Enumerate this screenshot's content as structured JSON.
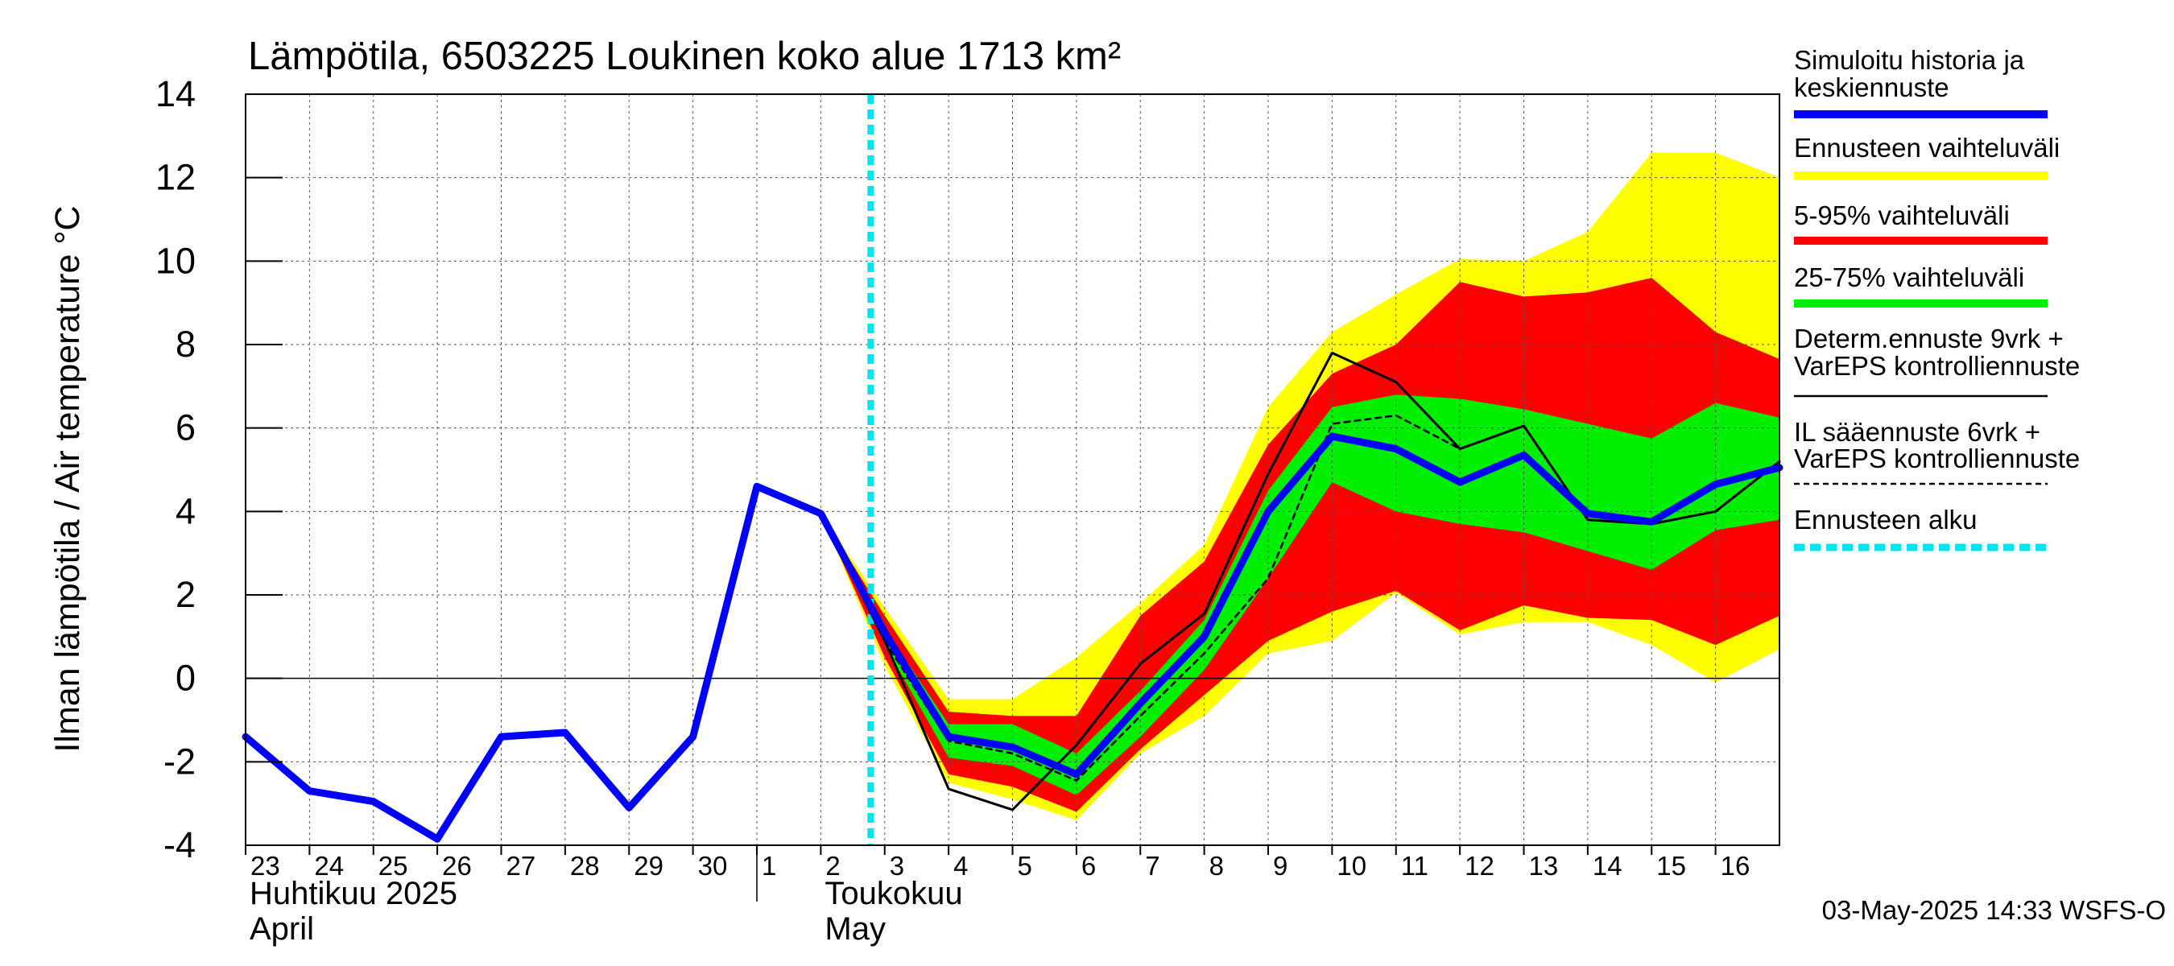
{
  "chart_data": {
    "type": "line",
    "title": "Lämpötila, 6503225 Loukinen koko alue 1713 km²",
    "ylabel": "Ilman lämpötila / Air temperature   °C",
    "ylim": [
      -4,
      14
    ],
    "yticks": [
      -4,
      -2,
      0,
      2,
      4,
      6,
      8,
      10,
      12,
      14
    ],
    "x_start": "2025-04-23",
    "x_end": "2025-05-17",
    "day_labels": [
      "23",
      "24",
      "25",
      "26",
      "27",
      "28",
      "29",
      "30",
      "1",
      "2",
      "3",
      "4",
      "5",
      "6",
      "7",
      "8",
      "9",
      "10",
      "11",
      "12",
      "13",
      "14",
      "15",
      "16"
    ],
    "month_labels": [
      {
        "line1": "Huhtikuu  2025",
        "line2": "April",
        "date": "2025-04-23"
      },
      {
        "line1": "Toukokuu",
        "line2": "May",
        "date": "2025-05-02"
      }
    ],
    "grid": true,
    "forecast_start": "2025-05-03",
    "timestamp": "03-May-2025 14:33 WSFS-O",
    "legend": {
      "placement": "right",
      "entries": [
        {
          "label_line1": "Simuloitu historia ja",
          "label_line2": "keskiennuste",
          "color": "#0000ff",
          "style": "thick"
        },
        {
          "label_line1": "Ennusteen vaihteluväli",
          "label_line2": "",
          "color": "#ffff00",
          "style": "thick"
        },
        {
          "label_line1": "5-95% vaihteluväli",
          "label_line2": "",
          "color": "#ff0000",
          "style": "thick"
        },
        {
          "label_line1": "25-75% vaihteluväli",
          "label_line2": "",
          "color": "#00ee00",
          "style": "thick"
        },
        {
          "label_line1": "Determ.ennuste 9vrk +",
          "label_line2": "VarEPS kontrolliennuste",
          "color": "#000000",
          "style": "thin"
        },
        {
          "label_line1": "IL sääennuste 6vrk  +",
          "label_line2": "  VarEPS kontrolliennuste",
          "color": "#000000",
          "style": "dashed"
        },
        {
          "label_line1": "Ennusteen alku",
          "label_line2": "",
          "color": "#00e5ee",
          "style": "dotted"
        }
      ]
    },
    "series": [
      {
        "key": "simulated",
        "color": "#0000ff",
        "points": [
          [
            "2025-04-23",
            -1.4
          ],
          [
            "2025-04-24",
            -2.7
          ],
          [
            "2025-04-25",
            -2.95
          ],
          [
            "2025-04-26",
            -3.85
          ],
          [
            "2025-04-27",
            -1.4
          ],
          [
            "2025-04-28",
            -1.3
          ],
          [
            "2025-04-29",
            -3.1
          ],
          [
            "2025-04-30",
            -1.4
          ],
          [
            "2025-05-01",
            4.6
          ],
          [
            "2025-05-02",
            3.95
          ],
          [
            "2025-05-03",
            1.1
          ],
          [
            "2025-05-04",
            -1.4
          ],
          [
            "2025-05-05",
            -1.65
          ],
          [
            "2025-05-06",
            -2.3
          ],
          [
            "2025-05-07",
            -0.6
          ],
          [
            "2025-05-08",
            1.0
          ],
          [
            "2025-05-09",
            4.0
          ],
          [
            "2025-05-10",
            5.8
          ],
          [
            "2025-05-11",
            5.5
          ],
          [
            "2025-05-12",
            4.7
          ],
          [
            "2025-05-13",
            5.35
          ],
          [
            "2025-05-14",
            3.95
          ],
          [
            "2025-05-15",
            3.75
          ],
          [
            "2025-05-16",
            4.65
          ],
          [
            "2025-05-17",
            5.05
          ]
        ]
      },
      {
        "key": "deterministic",
        "color": "#000000",
        "points": [
          [
            "2025-05-01",
            4.6
          ],
          [
            "2025-05-02",
            3.95
          ],
          [
            "2025-05-03",
            0.9
          ],
          [
            "2025-05-04",
            -2.65
          ],
          [
            "2025-05-05",
            -3.15
          ],
          [
            "2025-05-06",
            -1.6
          ],
          [
            "2025-05-07",
            0.35
          ],
          [
            "2025-05-08",
            1.55
          ],
          [
            "2025-05-09",
            4.9
          ],
          [
            "2025-05-10",
            7.8
          ],
          [
            "2025-05-11",
            7.1
          ],
          [
            "2025-05-12",
            5.5
          ],
          [
            "2025-05-13",
            6.05
          ],
          [
            "2025-05-14",
            3.8
          ],
          [
            "2025-05-15",
            3.7
          ],
          [
            "2025-05-16",
            4.0
          ],
          [
            "2025-05-17",
            5.2
          ]
        ]
      },
      {
        "key": "il_forecast",
        "color": "#000000",
        "points": [
          [
            "2025-05-03",
            0.9
          ],
          [
            "2025-05-04",
            -1.5
          ],
          [
            "2025-05-05",
            -1.8
          ],
          [
            "2025-05-06",
            -2.45
          ],
          [
            "2025-05-07",
            -0.9
          ],
          [
            "2025-05-08",
            0.6
          ],
          [
            "2025-05-09",
            2.4
          ],
          [
            "2025-05-10",
            6.1
          ],
          [
            "2025-05-11",
            6.3
          ],
          [
            "2025-05-12",
            5.5
          ]
        ]
      }
    ],
    "bands": [
      {
        "key": "range",
        "color": "#ffff00",
        "upper": [
          [
            "2025-05-02",
            3.95
          ],
          [
            "2025-05-03",
            1.7
          ],
          [
            "2025-05-04",
            -0.5
          ],
          [
            "2025-05-05",
            -0.5
          ],
          [
            "2025-05-06",
            0.5
          ],
          [
            "2025-05-07",
            1.8
          ],
          [
            "2025-05-08",
            3.2
          ],
          [
            "2025-05-09",
            6.5
          ],
          [
            "2025-05-10",
            8.3
          ],
          [
            "2025-05-11",
            9.2
          ],
          [
            "2025-05-12",
            10.05
          ],
          [
            "2025-05-13",
            10.0
          ],
          [
            "2025-05-14",
            10.7
          ],
          [
            "2025-05-15",
            12.6
          ],
          [
            "2025-05-16",
            12.6
          ],
          [
            "2025-05-17",
            12.0
          ]
        ],
        "lower": [
          [
            "2025-05-02",
            3.95
          ],
          [
            "2025-05-03",
            0.3
          ],
          [
            "2025-05-04",
            -2.5
          ],
          [
            "2025-05-05",
            -2.9
          ],
          [
            "2025-05-06",
            -3.4
          ],
          [
            "2025-05-07",
            -1.8
          ],
          [
            "2025-05-08",
            -0.9
          ],
          [
            "2025-05-09",
            0.6
          ],
          [
            "2025-05-10",
            0.9
          ],
          [
            "2025-05-11",
            2.05
          ],
          [
            "2025-05-12",
            1.05
          ],
          [
            "2025-05-13",
            1.35
          ],
          [
            "2025-05-14",
            1.35
          ],
          [
            "2025-05-15",
            0.8
          ],
          [
            "2025-05-16",
            -0.1
          ],
          [
            "2025-05-17",
            0.7
          ]
        ]
      },
      {
        "key": "p5_95",
        "color": "#ff0000",
        "upper": [
          [
            "2025-05-02",
            3.95
          ],
          [
            "2025-05-03",
            1.5
          ],
          [
            "2025-05-04",
            -0.8
          ],
          [
            "2025-05-05",
            -0.9
          ],
          [
            "2025-05-06",
            -0.9
          ],
          [
            "2025-05-07",
            1.5
          ],
          [
            "2025-05-08",
            2.8
          ],
          [
            "2025-05-09",
            5.6
          ],
          [
            "2025-05-10",
            7.3
          ],
          [
            "2025-05-11",
            8.0
          ],
          [
            "2025-05-12",
            9.5
          ],
          [
            "2025-05-13",
            9.15
          ],
          [
            "2025-05-14",
            9.25
          ],
          [
            "2025-05-15",
            9.6
          ],
          [
            "2025-05-16",
            8.3
          ],
          [
            "2025-05-17",
            7.65
          ]
        ],
        "lower": [
          [
            "2025-05-02",
            3.95
          ],
          [
            "2025-05-03",
            0.5
          ],
          [
            "2025-05-04",
            -2.3
          ],
          [
            "2025-05-05",
            -2.6
          ],
          [
            "2025-05-06",
            -3.2
          ],
          [
            "2025-05-07",
            -1.7
          ],
          [
            "2025-05-08",
            -0.4
          ],
          [
            "2025-05-09",
            0.9
          ],
          [
            "2025-05-10",
            1.6
          ],
          [
            "2025-05-11",
            2.1
          ],
          [
            "2025-05-12",
            1.15
          ],
          [
            "2025-05-13",
            1.75
          ],
          [
            "2025-05-14",
            1.45
          ],
          [
            "2025-05-15",
            1.4
          ],
          [
            "2025-05-16",
            0.8
          ],
          [
            "2025-05-17",
            1.5
          ]
        ]
      },
      {
        "key": "p25_75",
        "color": "#00ee00",
        "upper": [
          [
            "2025-05-03",
            1.2
          ],
          [
            "2025-05-04",
            -1.1
          ],
          [
            "2025-05-05",
            -1.1
          ],
          [
            "2025-05-06",
            -1.8
          ],
          [
            "2025-05-07",
            -0.3
          ],
          [
            "2025-05-08",
            1.4
          ],
          [
            "2025-05-09",
            4.5
          ],
          [
            "2025-05-10",
            6.5
          ],
          [
            "2025-05-11",
            6.8
          ],
          [
            "2025-05-12",
            6.7
          ],
          [
            "2025-05-13",
            6.45
          ],
          [
            "2025-05-14",
            6.1
          ],
          [
            "2025-05-15",
            5.75
          ],
          [
            "2025-05-16",
            6.6
          ],
          [
            "2025-05-17",
            6.25
          ]
        ],
        "lower": [
          [
            "2025-05-03",
            0.8
          ],
          [
            "2025-05-04",
            -1.9
          ],
          [
            "2025-05-05",
            -2.1
          ],
          [
            "2025-05-06",
            -2.8
          ],
          [
            "2025-05-07",
            -1.4
          ],
          [
            "2025-05-08",
            0.2
          ],
          [
            "2025-05-09",
            2.4
          ],
          [
            "2025-05-10",
            4.7
          ],
          [
            "2025-05-11",
            4.0
          ],
          [
            "2025-05-12",
            3.7
          ],
          [
            "2025-05-13",
            3.5
          ],
          [
            "2025-05-14",
            3.05
          ],
          [
            "2025-05-15",
            2.6
          ],
          [
            "2025-05-16",
            3.55
          ],
          [
            "2025-05-17",
            3.8
          ]
        ]
      }
    ]
  }
}
